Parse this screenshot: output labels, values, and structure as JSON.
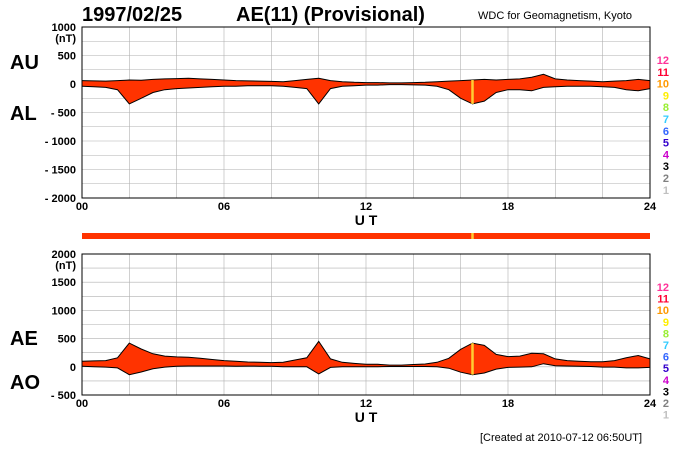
{
  "header": {
    "date": "1997/02/25",
    "title": "AE(11) (Provisional)",
    "source": "WDC for Geomagnetism, Kyoto"
  },
  "footer": {
    "created": "[Created at 2010-07-12 06:50UT]"
  },
  "colors": {
    "fill": "#ff3300",
    "outline": "#000000",
    "grid": "#b0b0b0",
    "highlight": "#ffcc33"
  },
  "legend": {
    "items": [
      {
        "label": "12",
        "color": "#ff3399"
      },
      {
        "label": "11",
        "color": "#ff0033"
      },
      {
        "label": "10",
        "color": "#ff9900"
      },
      {
        "label": "9",
        "color": "#ffee00"
      },
      {
        "label": "8",
        "color": "#99ee33"
      },
      {
        "label": "7",
        "color": "#33ccff"
      },
      {
        "label": "6",
        "color": "#3366ff"
      },
      {
        "label": "5",
        "color": "#3300cc"
      },
      {
        "label": "4",
        "color": "#cc00cc"
      },
      {
        "label": "3",
        "color": "#000000"
      },
      {
        "label": "2",
        "color": "#808080"
      },
      {
        "label": "1",
        "color": "#c0c0c0"
      }
    ]
  },
  "chart_data": [
    {
      "type": "area",
      "name": "AU/AL",
      "side_labels": {
        "upper": "AU",
        "lower": "AL"
      },
      "unit": "(nT)",
      "xlabel": "U T",
      "xlim": [
        0,
        24
      ],
      "xticks": [
        "00",
        "06",
        "12",
        "18",
        "24"
      ],
      "ylim": [
        -2000,
        1000
      ],
      "yticks": [
        "1000",
        "500",
        "0",
        "- 500",
        "- 1000",
        "- 1500",
        "- 2000"
      ],
      "grid": true,
      "highlight_hour": 16.5,
      "x": [
        0,
        0.5,
        1,
        1.5,
        2,
        2.5,
        3,
        3.5,
        4,
        4.5,
        5,
        5.5,
        6,
        6.5,
        7,
        7.5,
        8,
        8.5,
        9,
        9.5,
        10,
        10.5,
        11,
        11.5,
        12,
        12.5,
        13,
        13.5,
        14,
        14.5,
        15,
        15.5,
        16,
        16.5,
        17,
        17.5,
        18,
        18.5,
        19,
        19.5,
        20,
        20.5,
        21,
        21.5,
        22,
        22.5,
        23,
        23.5,
        24
      ],
      "au": [
        60,
        55,
        50,
        60,
        70,
        65,
        80,
        90,
        95,
        100,
        90,
        80,
        70,
        60,
        55,
        50,
        45,
        40,
        60,
        80,
        100,
        60,
        40,
        30,
        25,
        25,
        20,
        20,
        25,
        30,
        40,
        50,
        60,
        70,
        80,
        70,
        80,
        90,
        120,
        170,
        90,
        70,
        60,
        50,
        40,
        50,
        60,
        80,
        60
      ],
      "al": [
        -40,
        -50,
        -60,
        -100,
        -350,
        -250,
        -150,
        -100,
        -80,
        -70,
        -60,
        -50,
        -40,
        -40,
        -30,
        -30,
        -30,
        -40,
        -60,
        -80,
        -350,
        -80,
        -40,
        -30,
        -20,
        -20,
        -10,
        -10,
        -15,
        -20,
        -40,
        -100,
        -250,
        -350,
        -300,
        -150,
        -100,
        -100,
        -120,
        -60,
        -50,
        -40,
        -40,
        -40,
        -50,
        -60,
        -100,
        -120,
        -80
      ]
    },
    {
      "type": "area",
      "name": "AE/AO",
      "side_labels": {
        "upper": "AE",
        "lower": "AO"
      },
      "unit": "(nT)",
      "xlabel": "U T",
      "xlim": [
        0,
        24
      ],
      "xticks": [
        "00",
        "06",
        "12",
        "18",
        "24"
      ],
      "ylim": [
        -500,
        2000
      ],
      "yticks": [
        "2000",
        "1500",
        "1000",
        "500",
        "0",
        "- 500"
      ],
      "grid": true,
      "highlight_hour": 16.5,
      "x": [
        0,
        0.5,
        1,
        1.5,
        2,
        2.5,
        3,
        3.5,
        4,
        4.5,
        5,
        5.5,
        6,
        6.5,
        7,
        7.5,
        8,
        8.5,
        9,
        9.5,
        10,
        10.5,
        11,
        11.5,
        12,
        12.5,
        13,
        13.5,
        14,
        14.5,
        15,
        15.5,
        16,
        16.5,
        17,
        17.5,
        18,
        18.5,
        19,
        19.5,
        20,
        20.5,
        21,
        21.5,
        22,
        22.5,
        23,
        23.5,
        24
      ],
      "ae": [
        100,
        105,
        110,
        160,
        420,
        315,
        230,
        190,
        175,
        170,
        150,
        130,
        110,
        100,
        85,
        80,
        75,
        80,
        120,
        160,
        450,
        140,
        80,
        60,
        45,
        45,
        30,
        30,
        40,
        50,
        80,
        150,
        310,
        420,
        380,
        220,
        180,
        190,
        240,
        230,
        140,
        110,
        100,
        90,
        90,
        110,
        160,
        200,
        140
      ],
      "ao": [
        10,
        2,
        -5,
        -20,
        -140,
        -92,
        -35,
        -5,
        8,
        15,
        15,
        15,
        15,
        10,
        12,
        10,
        8,
        0,
        0,
        0,
        -125,
        -10,
        0,
        0,
        2,
        2,
        5,
        5,
        5,
        5,
        0,
        -25,
        -95,
        -140,
        -110,
        -40,
        -10,
        -5,
        0,
        55,
        20,
        15,
        10,
        5,
        -5,
        -5,
        -20,
        -20,
        -10
      ]
    }
  ],
  "status_bar": {
    "color": "#ff3300",
    "marker_color": "#ffcc33",
    "marker_hour": 16.5
  }
}
